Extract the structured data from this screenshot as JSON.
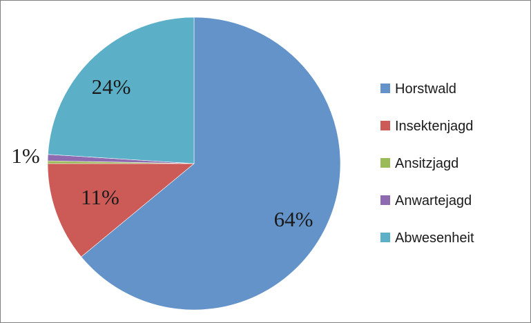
{
  "chart_data": {
    "type": "pie",
    "title": "",
    "start_angle_deg": 0,
    "direction": "clockwise",
    "legend_position": "right",
    "slices": [
      {
        "label": "Horstwald",
        "value": 64,
        "color": "#6393c9",
        "data_label": "64%"
      },
      {
        "label": "Insektenjagd",
        "value": 11,
        "color": "#cc5b58",
        "data_label": "11%"
      },
      {
        "label": "Ansitzjagd",
        "value": 0.3,
        "color": "#9bbb59",
        "data_label": ""
      },
      {
        "label": "Anwartejagd",
        "value": 0.7,
        "color": "#8e6bb0",
        "data_label": "1%"
      },
      {
        "label": "Abwesenheit",
        "value": 24,
        "color": "#5bb0c8",
        "data_label": "24%"
      }
    ]
  }
}
